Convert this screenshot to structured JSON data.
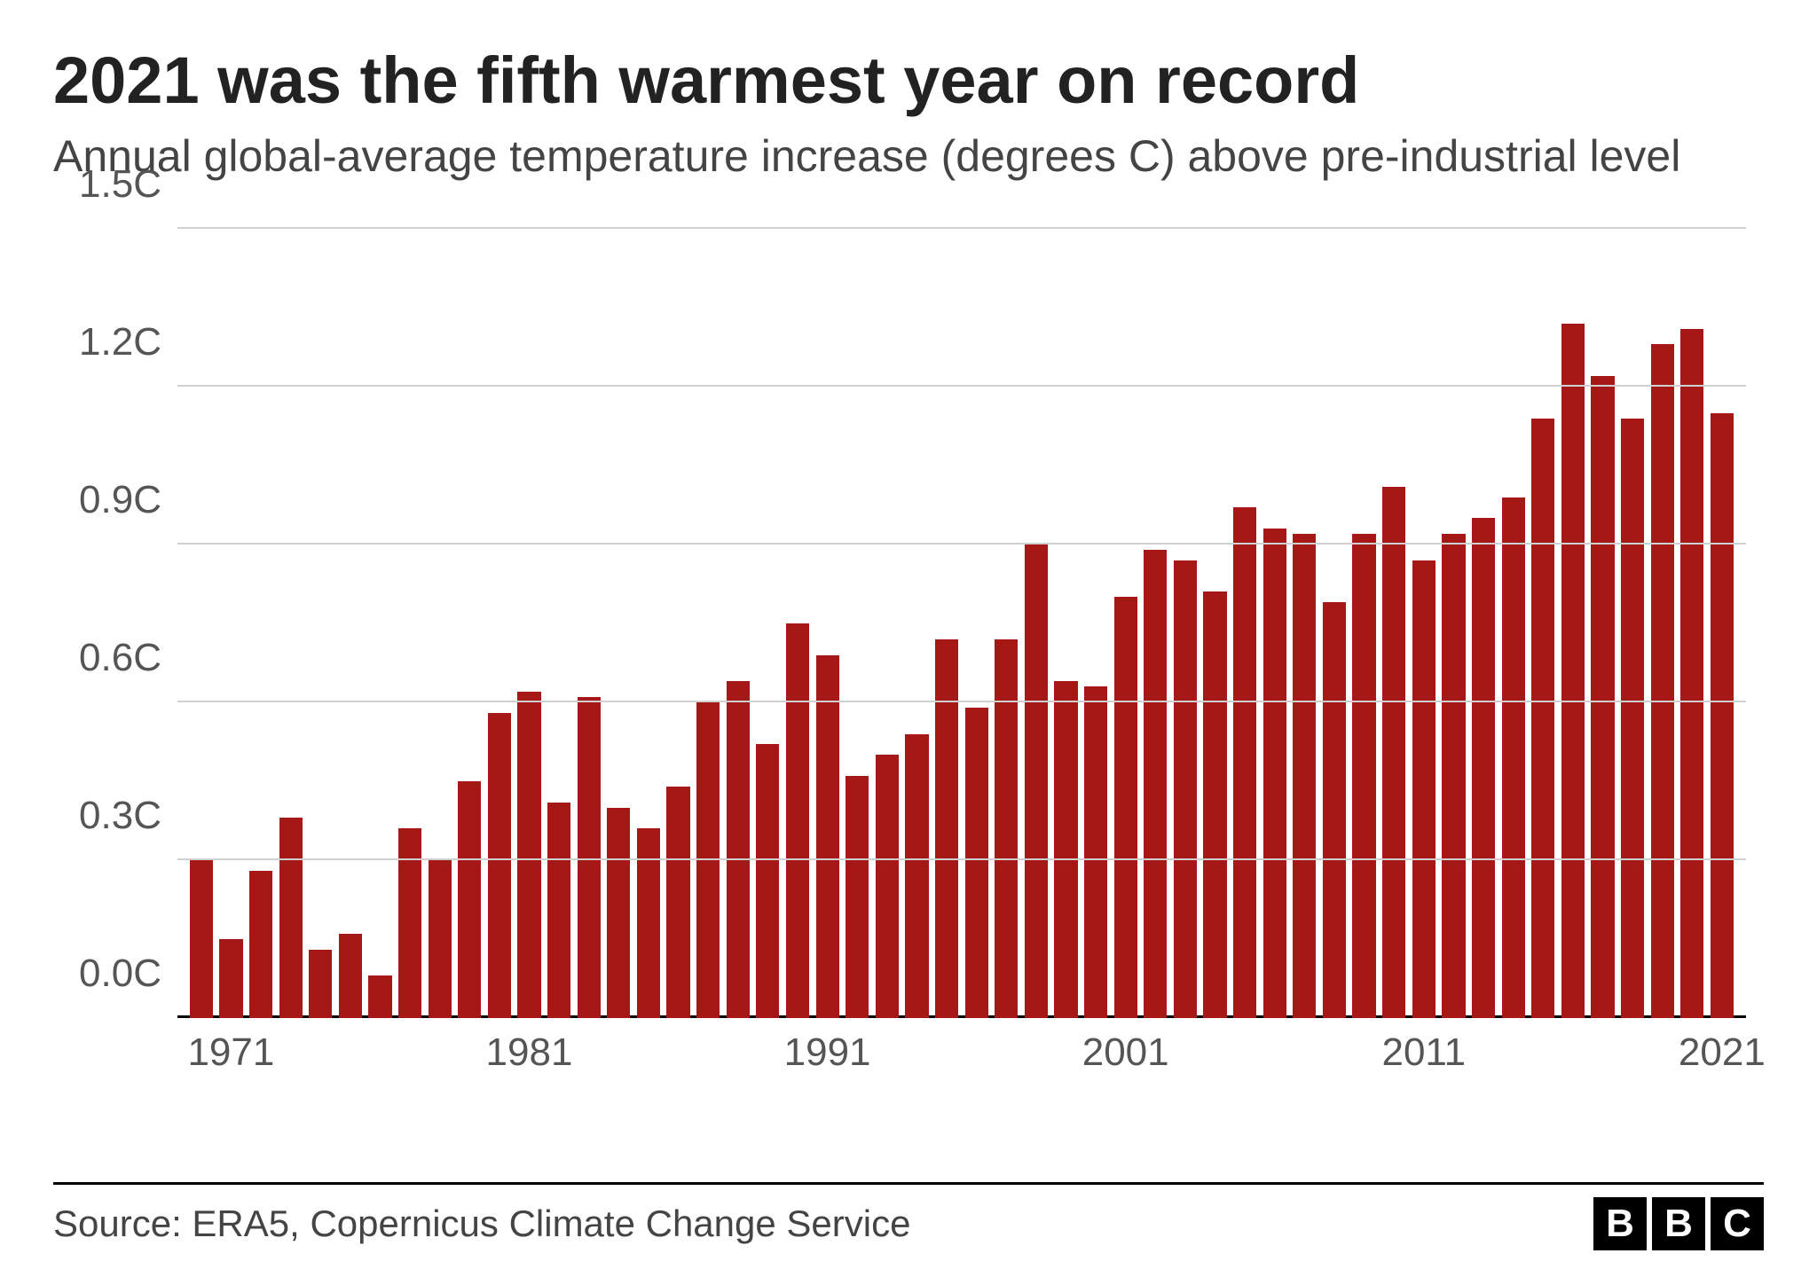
{
  "title": "2021 was the fifth warmest year on record",
  "subtitle": "Annual global-average temperature increase (degrees C) above pre-industrial level",
  "source": "Source: ERA5, Copernicus Climate Change Service",
  "logo": {
    "b1": "B",
    "b2": "B",
    "b3": "C"
  },
  "chart": {
    "type": "bar",
    "bar_color": "#a61815",
    "grid_color": "#cfcfcf",
    "baseline_color": "#000000",
    "background_color": "#ffffff",
    "title_fontsize": 74,
    "subtitle_fontsize": 50,
    "axis_label_fontsize": 44,
    "axis_label_color": "#555555",
    "bar_width": 0.78,
    "ylim": [
      0.0,
      1.5
    ],
    "ytick_step": 0.3,
    "y_ticks": [
      {
        "value": 0.0,
        "label": "0.0C"
      },
      {
        "value": 0.3,
        "label": "0.3C"
      },
      {
        "value": 0.6,
        "label": "0.6C"
      },
      {
        "value": 0.9,
        "label": "0.9C"
      },
      {
        "value": 1.2,
        "label": "1.2C"
      },
      {
        "value": 1.5,
        "label": "1.5C"
      }
    ],
    "x_ticks": [
      {
        "year": 1971,
        "label": "1971"
      },
      {
        "year": 1981,
        "label": "1981"
      },
      {
        "year": 1991,
        "label": "1991"
      },
      {
        "year": 2001,
        "label": "2001"
      },
      {
        "year": 2011,
        "label": "2011"
      },
      {
        "year": 2021,
        "label": "2021"
      }
    ],
    "x_start": 1970,
    "x_end": 2021,
    "series": [
      {
        "year": 1970,
        "value": 0.3
      },
      {
        "year": 1971,
        "value": 0.15
      },
      {
        "year": 1972,
        "value": 0.28
      },
      {
        "year": 1973,
        "value": 0.38
      },
      {
        "year": 1974,
        "value": 0.13
      },
      {
        "year": 1975,
        "value": 0.16
      },
      {
        "year": 1976,
        "value": 0.08
      },
      {
        "year": 1977,
        "value": 0.36
      },
      {
        "year": 1978,
        "value": 0.3
      },
      {
        "year": 1979,
        "value": 0.45
      },
      {
        "year": 1980,
        "value": 0.58
      },
      {
        "year": 1981,
        "value": 0.62
      },
      {
        "year": 1982,
        "value": 0.41
      },
      {
        "year": 1983,
        "value": 0.61
      },
      {
        "year": 1984,
        "value": 0.4
      },
      {
        "year": 1985,
        "value": 0.36
      },
      {
        "year": 1986,
        "value": 0.44
      },
      {
        "year": 1987,
        "value": 0.6
      },
      {
        "year": 1988,
        "value": 0.64
      },
      {
        "year": 1989,
        "value": 0.52
      },
      {
        "year": 1990,
        "value": 0.75
      },
      {
        "year": 1991,
        "value": 0.69
      },
      {
        "year": 1992,
        "value": 0.46
      },
      {
        "year": 1993,
        "value": 0.5
      },
      {
        "year": 1994,
        "value": 0.54
      },
      {
        "year": 1995,
        "value": 0.72
      },
      {
        "year": 1996,
        "value": 0.59
      },
      {
        "year": 1997,
        "value": 0.72
      },
      {
        "year": 1998,
        "value": 0.9
      },
      {
        "year": 1999,
        "value": 0.64
      },
      {
        "year": 2000,
        "value": 0.63
      },
      {
        "year": 2001,
        "value": 0.8
      },
      {
        "year": 2002,
        "value": 0.89
      },
      {
        "year": 2003,
        "value": 0.87
      },
      {
        "year": 2004,
        "value": 0.81
      },
      {
        "year": 2005,
        "value": 0.97
      },
      {
        "year": 2006,
        "value": 0.93
      },
      {
        "year": 2007,
        "value": 0.92
      },
      {
        "year": 2008,
        "value": 0.79
      },
      {
        "year": 2009,
        "value": 0.92
      },
      {
        "year": 2010,
        "value": 1.01
      },
      {
        "year": 2011,
        "value": 0.87
      },
      {
        "year": 2012,
        "value": 0.92
      },
      {
        "year": 2013,
        "value": 0.95
      },
      {
        "year": 2014,
        "value": 0.99
      },
      {
        "year": 2015,
        "value": 1.14
      },
      {
        "year": 2016,
        "value": 1.32
      },
      {
        "year": 2017,
        "value": 1.22
      },
      {
        "year": 2018,
        "value": 1.14
      },
      {
        "year": 2019,
        "value": 1.28
      },
      {
        "year": 2020,
        "value": 1.31
      },
      {
        "year": 2021,
        "value": 1.15
      }
    ]
  }
}
